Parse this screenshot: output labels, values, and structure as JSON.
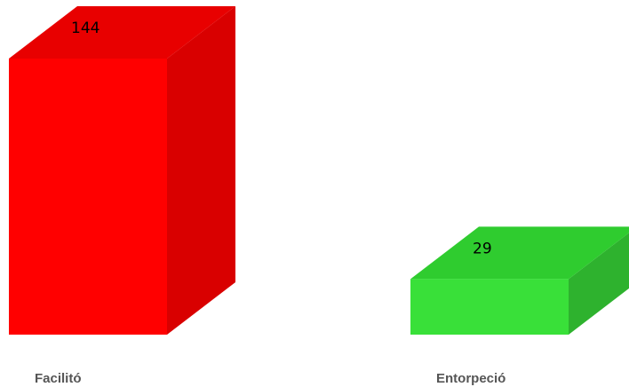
{
  "chart_data": {
    "type": "bar",
    "title": "",
    "xlabel": "",
    "ylabel": "",
    "categories": [
      "Facilitó",
      "Entorpeció"
    ],
    "values": [
      144,
      29
    ],
    "ylim": [
      0,
      144
    ],
    "grid": false,
    "legend": "none",
    "colors": [
      {
        "front": "#ff0000",
        "top": "#e80000",
        "side": "#d90000"
      },
      {
        "front": "#39e039",
        "top": "#2fcc2f",
        "side": "#2eb22e"
      }
    ]
  }
}
